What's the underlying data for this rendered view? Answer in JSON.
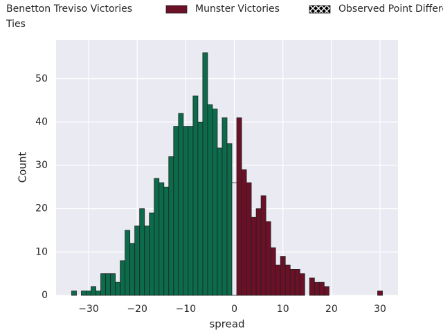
{
  "chart_data": {
    "type": "histogram",
    "xlabel": "spread",
    "ylabel": "Count",
    "bins": [
      -33.5,
      -32.5,
      -31.5,
      -30.5,
      -29.5,
      -28.5,
      -27.5,
      -26.5,
      -25.5,
      -24.5,
      -23.5,
      -22.5,
      -21.5,
      -20.5,
      -19.5,
      -18.5,
      -17.5,
      -16.5,
      -15.5,
      -14.5,
      -13.5,
      -12.5,
      -11.5,
      -10.5,
      -9.5,
      -8.5,
      -7.5,
      -6.5,
      -5.5,
      -4.5,
      -3.5,
      -2.5,
      -1.5,
      -0.5,
      0.5,
      1.5,
      2.5,
      3.5,
      4.5,
      5.5,
      6.5,
      7.5,
      8.5,
      9.5,
      10.5,
      11.5,
      12.5,
      13.5,
      14.5,
      15.5,
      16.5,
      17.5,
      18.5,
      19.5,
      20.5,
      21.5,
      22.5,
      23.5,
      24.5,
      25.5,
      26.5,
      27.5,
      28.5,
      29.5,
      30.5
    ],
    "series": [
      {
        "name": "Benetton Treviso Victories",
        "color": "#0b6b4a",
        "values": [
          1,
          0,
          1,
          1,
          2,
          1,
          5,
          5,
          5,
          3,
          8,
          15,
          12,
          16,
          20,
          16,
          19,
          27,
          26,
          25,
          32,
          39,
          42,
          39,
          39,
          46,
          40,
          56,
          44,
          43,
          34,
          41,
          35,
          0,
          0,
          0,
          0,
          0,
          0,
          0,
          0,
          0,
          0,
          0,
          0,
          0,
          0,
          0,
          0,
          0,
          0,
          0,
          0,
          0,
          0,
          0,
          0,
          0,
          0,
          0,
          0,
          0,
          0,
          0
        ]
      },
      {
        "name": "Munster Victories",
        "color": "#6b1026",
        "values": [
          0,
          0,
          0,
          0,
          0,
          0,
          0,
          0,
          0,
          0,
          0,
          0,
          0,
          0,
          0,
          0,
          0,
          0,
          0,
          0,
          0,
          0,
          0,
          0,
          0,
          0,
          0,
          0,
          0,
          0,
          0,
          0,
          0,
          0,
          41,
          29,
          26,
          18,
          20,
          23,
          17,
          11,
          7,
          9,
          7,
          6,
          6,
          5,
          0,
          4,
          3,
          3,
          2,
          0,
          0,
          0,
          0,
          0,
          0,
          0,
          0,
          0,
          0,
          1
        ]
      },
      {
        "name": "Observed Point Difference",
        "color": "#000000",
        "hatch": true
      },
      {
        "name": "Ties",
        "color": "#eaeaf2",
        "values": [
          0,
          0,
          0,
          0,
          0,
          0,
          0,
          0,
          0,
          0,
          0,
          0,
          0,
          0,
          0,
          0,
          0,
          0,
          0,
          0,
          0,
          0,
          0,
          0,
          0,
          0,
          0,
          0,
          0,
          0,
          0,
          0,
          0,
          26,
          0,
          0,
          0,
          0,
          0,
          0,
          0,
          0,
          0,
          0,
          0,
          0,
          0,
          0,
          0,
          0,
          0,
          0,
          0,
          0,
          0,
          0,
          0,
          0,
          0,
          0,
          0,
          0,
          0,
          0
        ]
      }
    ],
    "xlim": [
      -36.7,
      33.7
    ],
    "ylim": [
      0,
      58.9
    ],
    "xticks": [
      {
        "value": -30,
        "label": "−30"
      },
      {
        "value": -20,
        "label": "−20"
      },
      {
        "value": -10,
        "label": "−10"
      },
      0,
      10,
      20,
      30
    ],
    "yticks": [
      0,
      10,
      20,
      30,
      40,
      50
    ],
    "grid": true
  }
}
